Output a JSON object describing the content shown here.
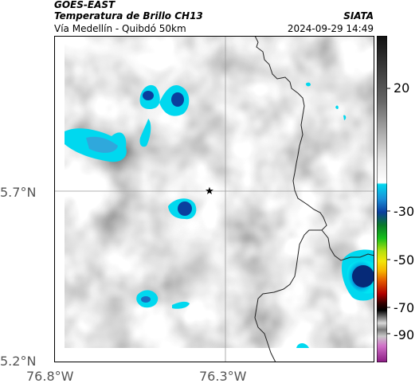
{
  "header": {
    "satellite": "GOES-EAST",
    "product": "Temperatura de Brillo CH13",
    "route": "Vía Medellín - Quibdó 50km",
    "brand": "SIATA",
    "timestamp": "2024-09-29 14:49"
  },
  "map": {
    "lat_labels": [
      "5.7°N",
      "5.2°N"
    ],
    "lon_labels": [
      "76.8°W",
      "76.3°W"
    ],
    "marker_icon": "star-icon",
    "colors": {
      "cold_cyan": "#00d8ef",
      "cold_blue": "#0a3f9e",
      "deep_blue": "#062a78",
      "border_line": "#222222",
      "grid_line": "#9a9a9a"
    }
  },
  "colorbar": {
    "ticks": [
      "20",
      "-30",
      "-50",
      "-70",
      "-90"
    ],
    "unit_scale": "brightness temperature"
  }
}
